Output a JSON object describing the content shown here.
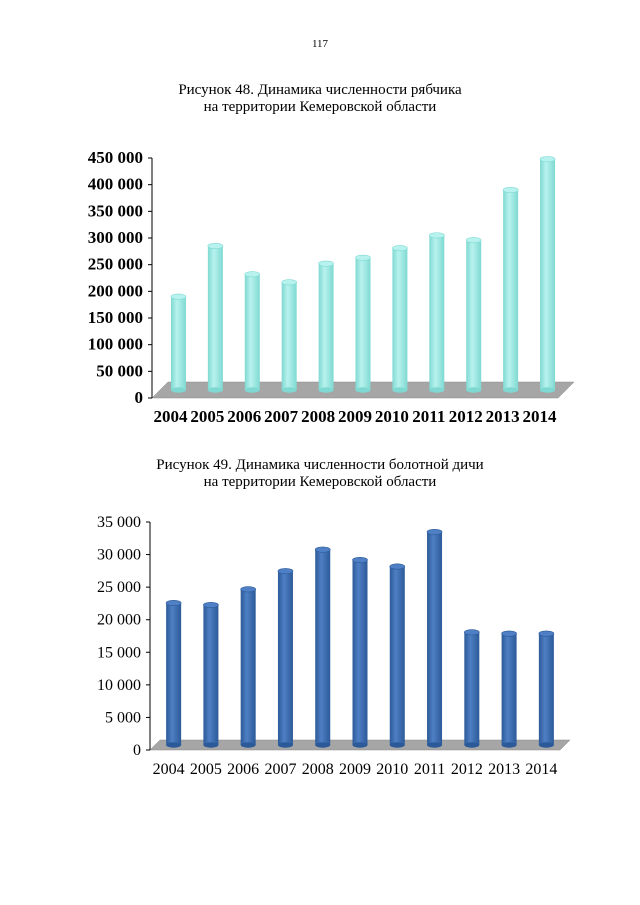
{
  "page_number": "117",
  "figures": [
    {
      "caption_line1": "Рисунок 48. Динамика численности рябчика",
      "caption_line2": "на территории Кемеровской области"
    },
    {
      "caption_line1": "Рисунок 49. Динамика численности болотной дичи",
      "caption_line2": "на территории  Кемеровской области"
    }
  ],
  "colors": {
    "chart1_bar": "#b8f2ee",
    "chart1_bar_dark": "#7fd9d2",
    "chart2_bar": "#4f7fc4",
    "chart2_bar_dark": "#2c5a99",
    "floor": "#a6a6a6"
  },
  "chart_data": [
    {
      "type": "bar",
      "title": "Рисунок 48. Динамика численности рябчика на территории Кемеровской области",
      "categories": [
        "2004",
        "2005",
        "2006",
        "2007",
        "2008",
        "2009",
        "2010",
        "2011",
        "2012",
        "2013",
        "2014"
      ],
      "values": [
        175000,
        270000,
        217000,
        202000,
        237000,
        248000,
        266000,
        290000,
        281000,
        375000,
        433000
      ],
      "ylim": [
        0,
        450000
      ],
      "yticks": [
        0,
        50000,
        100000,
        150000,
        200000,
        250000,
        300000,
        350000,
        400000,
        450000
      ],
      "ytick_labels": [
        "0",
        "50 000",
        "100 000",
        "150 000",
        "200 000",
        "250 000",
        "300 000",
        "350 000",
        "400 000",
        "450 000"
      ],
      "xlabel": "",
      "ylabel": "",
      "legend": "none",
      "grid": false
    },
    {
      "type": "bar",
      "title": "Рисунок 49. Динамика численности болотной дичи на территории Кемеровской области",
      "categories": [
        "2004",
        "2005",
        "2006",
        "2007",
        "2008",
        "2009",
        "2010",
        "2011",
        "2012",
        "2013",
        "2014"
      ],
      "values": [
        21800,
        21500,
        23900,
        26700,
        30000,
        28400,
        27400,
        32700,
        17300,
        17100,
        17100
      ],
      "ylim": [
        0,
        35000
      ],
      "yticks": [
        0,
        5000,
        10000,
        15000,
        20000,
        25000,
        30000,
        35000
      ],
      "ytick_labels": [
        "0",
        "5 000",
        "10 000",
        "15 000",
        "20 000",
        "25 000",
        "30 000",
        "35 000"
      ],
      "xlabel": "",
      "ylabel": "",
      "legend": "none",
      "grid": false
    }
  ]
}
